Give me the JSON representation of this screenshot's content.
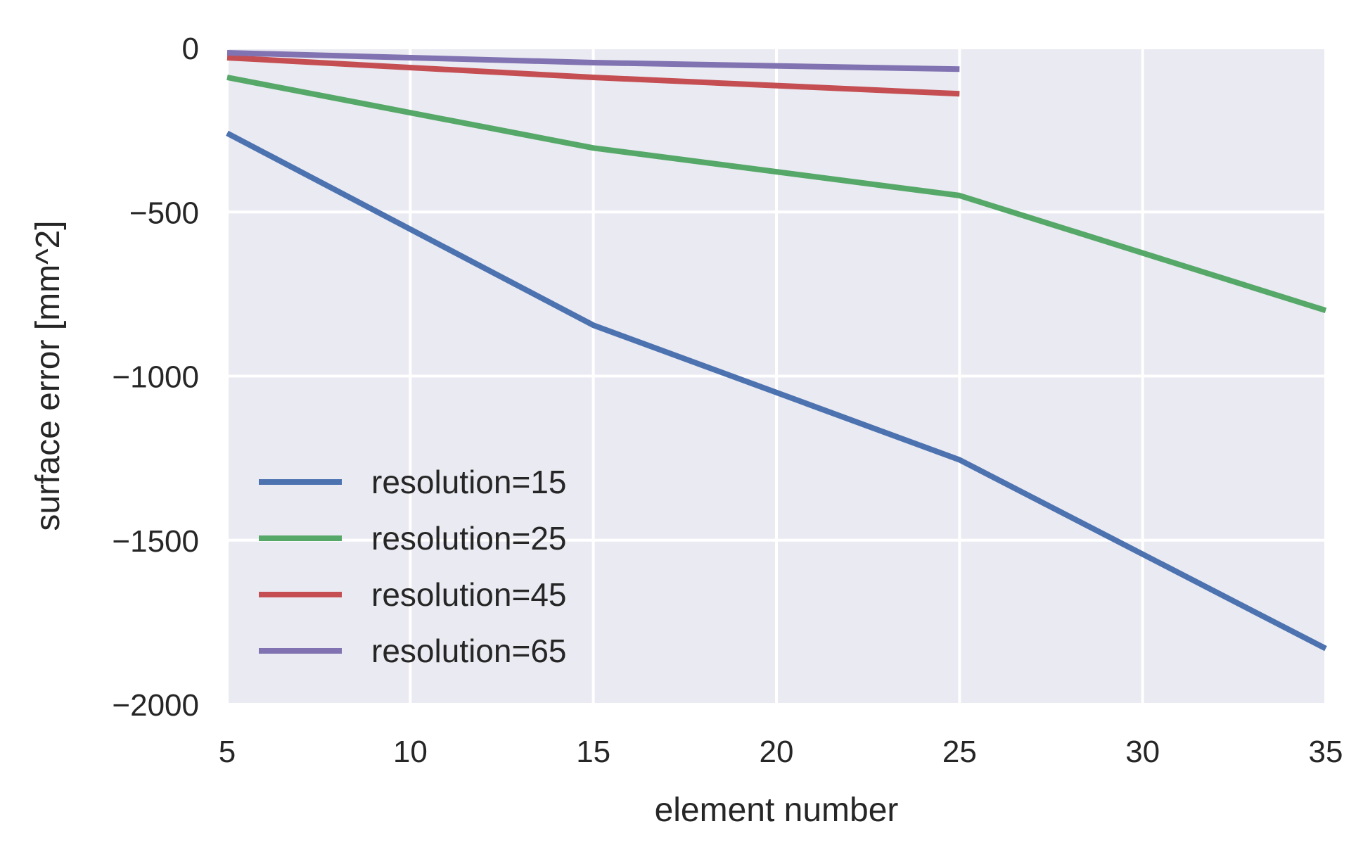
{
  "chart_data": {
    "type": "line",
    "title": "",
    "xlabel": "element number",
    "ylabel": "surface error [mm^2]",
    "xlim": [
      5,
      35
    ],
    "ylim": [
      -2000,
      0
    ],
    "xticks": [
      5,
      10,
      15,
      20,
      25,
      30,
      35
    ],
    "yticks": [
      0,
      -500,
      -1000,
      -1500,
      -2000
    ],
    "xtick_labels": [
      "5",
      "10",
      "15",
      "20",
      "25",
      "30",
      "35"
    ],
    "ytick_labels": [
      "0",
      "−500",
      "−1000",
      "−1500",
      "−2000"
    ],
    "grid": true,
    "background": "#EAEAF2",
    "legend_position": "lower-left",
    "series": [
      {
        "name": "resolution=15",
        "color": "#4C72B0",
        "x": [
          5,
          15,
          25,
          35
        ],
        "y": [
          -260,
          -845,
          -1255,
          -1830
        ]
      },
      {
        "name": "resolution=25",
        "color": "#55A868",
        "x": [
          5,
          15,
          25,
          35
        ],
        "y": [
          -90,
          -305,
          -450,
          -800
        ]
      },
      {
        "name": "resolution=45",
        "color": "#C44E52",
        "x": [
          5,
          15,
          25
        ],
        "y": [
          -30,
          -90,
          -140
        ]
      },
      {
        "name": "resolution=65",
        "color": "#8172B2",
        "x": [
          5,
          15,
          25
        ],
        "y": [
          -15,
          -45,
          -65
        ]
      }
    ]
  }
}
